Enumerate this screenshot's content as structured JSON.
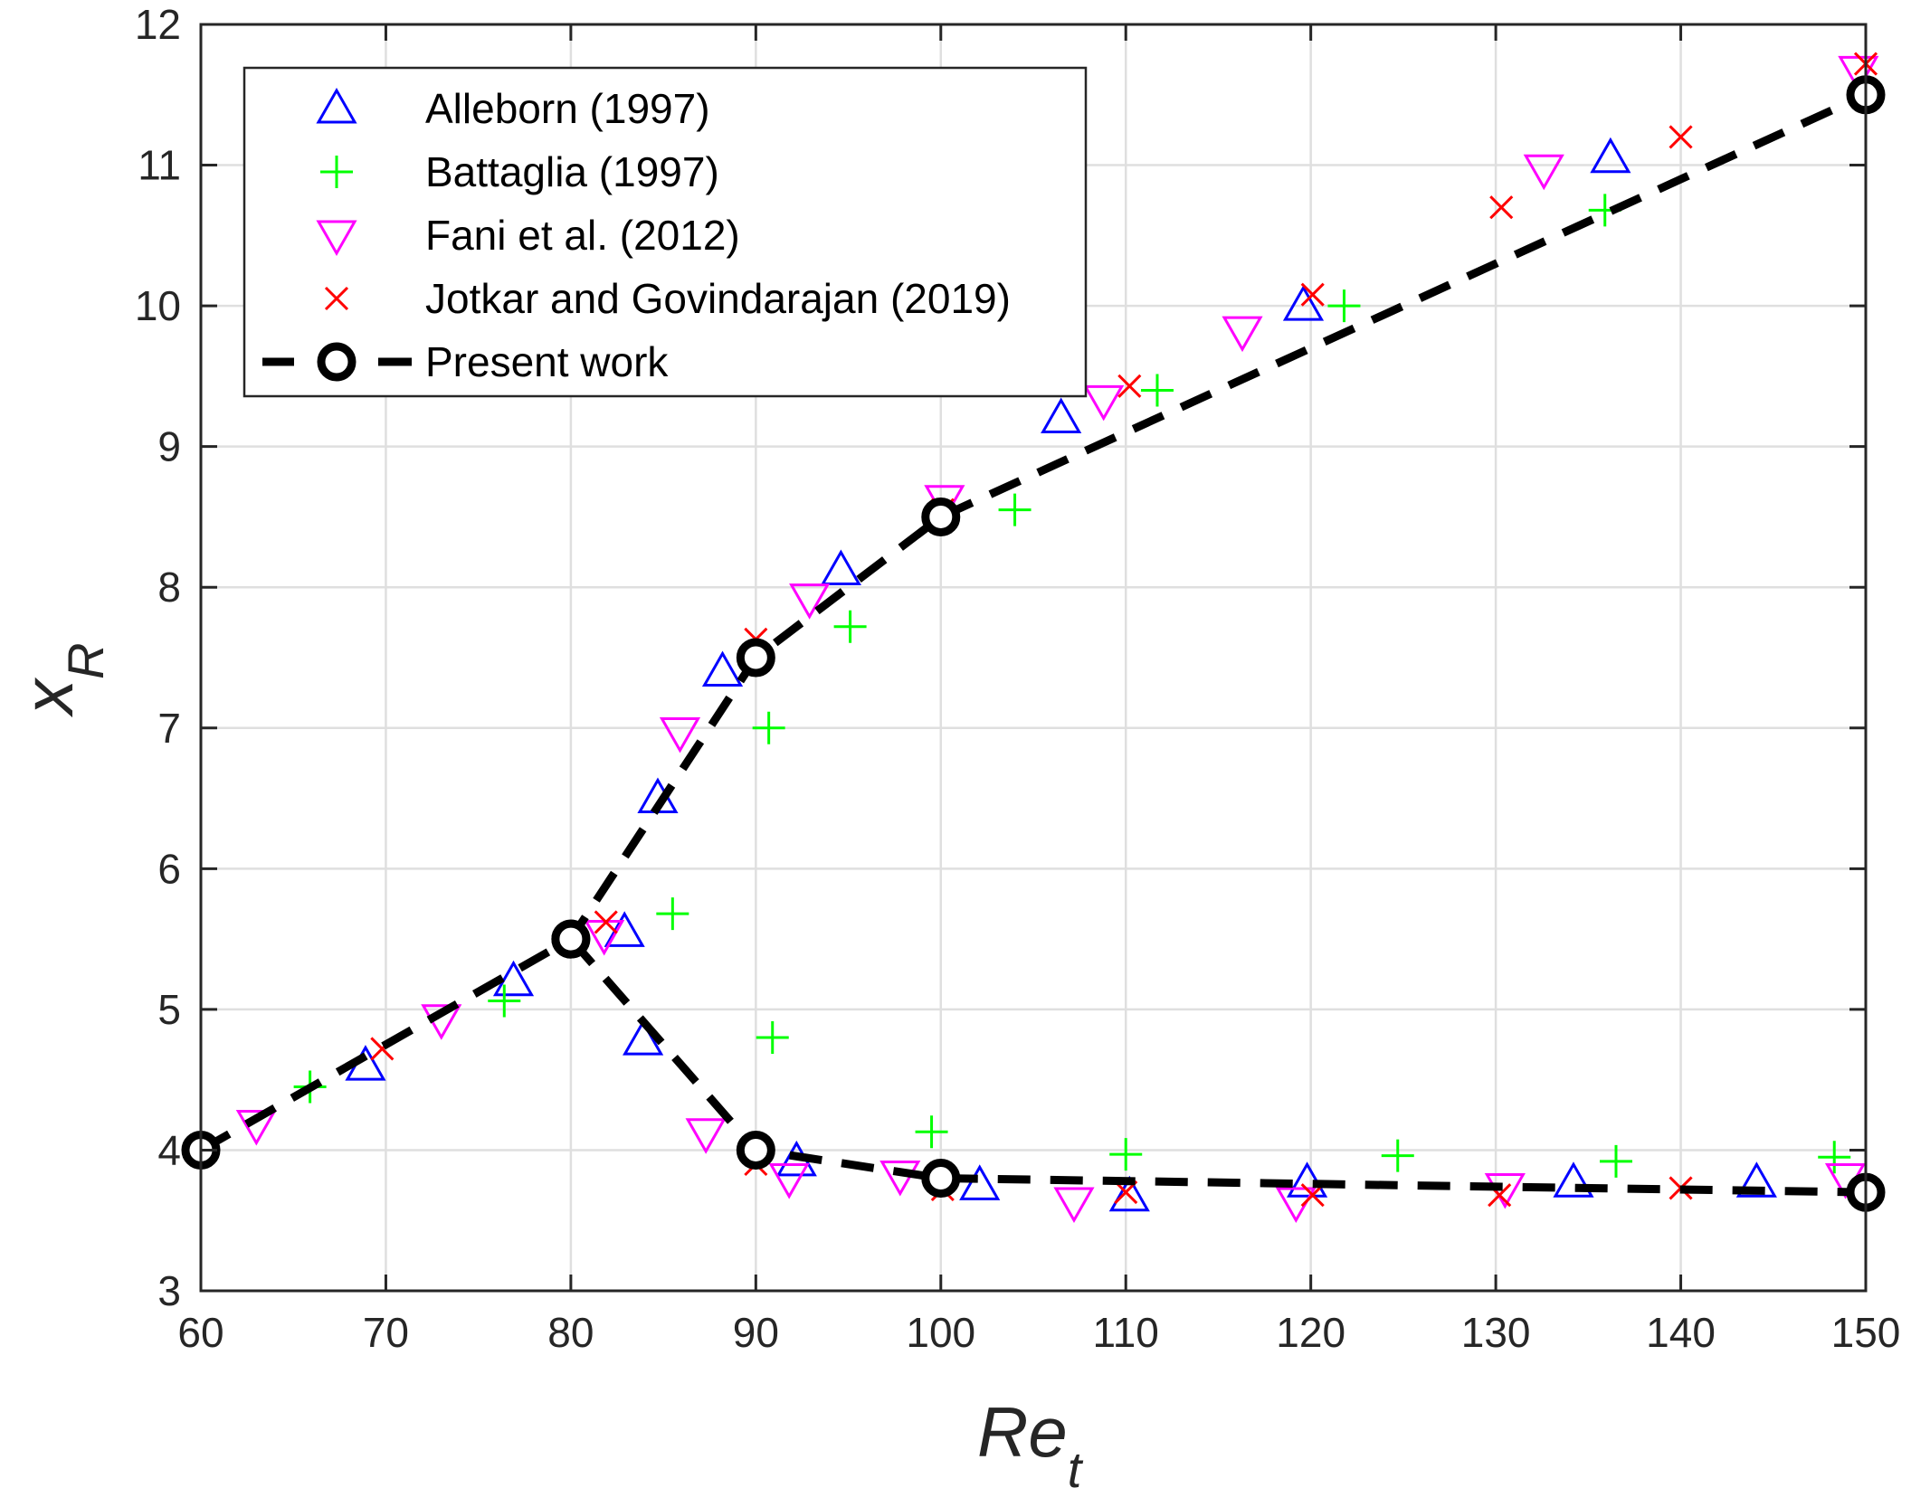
{
  "chart_data": {
    "type": "scatter",
    "title": "",
    "xlabel": {
      "main": "Re",
      "sub": "t"
    },
    "ylabel": {
      "main": "x",
      "sub": "R"
    },
    "xlim": [
      60,
      150
    ],
    "ylim": [
      3,
      12
    ],
    "xticks": [
      60,
      70,
      80,
      90,
      100,
      110,
      120,
      130,
      140,
      150
    ],
    "yticks": [
      3,
      4,
      5,
      6,
      7,
      8,
      9,
      10,
      11,
      12
    ],
    "grid": true,
    "legend_position": "top-left",
    "series": [
      {
        "name": "Alleborn (1997)",
        "marker": "triangle-up",
        "color": "#0000ff",
        "points": [
          [
            68.9,
            4.6
          ],
          [
            76.9,
            5.2
          ],
          [
            82.9,
            5.55
          ],
          [
            84.7,
            6.5
          ],
          [
            88.2,
            7.4
          ],
          [
            94.6,
            8.12
          ],
          [
            106.5,
            9.2
          ],
          [
            119.6,
            10.0
          ],
          [
            136.2,
            11.05
          ],
          [
            83.9,
            4.78
          ],
          [
            92.2,
            3.92
          ],
          [
            102.1,
            3.75
          ],
          [
            110.2,
            3.67
          ],
          [
            119.8,
            3.77
          ],
          [
            134.2,
            3.77
          ],
          [
            144.1,
            3.77
          ]
        ]
      },
      {
        "name": "Battaglia (1997)",
        "marker": "plus",
        "color": "#00ff00",
        "points": [
          [
            65.9,
            4.45
          ],
          [
            76.4,
            5.06
          ],
          [
            85.5,
            5.68
          ],
          [
            90.7,
            7.0
          ],
          [
            95.1,
            7.72
          ],
          [
            104.0,
            8.55
          ],
          [
            111.7,
            9.4
          ],
          [
            121.8,
            10.0
          ],
          [
            135.9,
            10.68
          ],
          [
            90.9,
            4.8
          ],
          [
            99.5,
            4.13
          ],
          [
            110.0,
            3.97
          ],
          [
            124.7,
            3.96
          ],
          [
            136.5,
            3.92
          ],
          [
            148.3,
            3.95
          ]
        ]
      },
      {
        "name": "Fani et al. (2012)",
        "marker": "triangle-down",
        "color": "#ff00ff",
        "points": [
          [
            63.0,
            4.18
          ],
          [
            73.0,
            4.93
          ],
          [
            81.8,
            5.53
          ],
          [
            85.9,
            6.97
          ],
          [
            92.9,
            7.92
          ],
          [
            100.2,
            8.62
          ],
          [
            108.8,
            9.33
          ],
          [
            116.3,
            9.82
          ],
          [
            132.6,
            10.97
          ],
          [
            149.6,
            11.67
          ],
          [
            87.3,
            4.12
          ],
          [
            91.8,
            3.8
          ],
          [
            97.8,
            3.82
          ],
          [
            107.2,
            3.63
          ],
          [
            119.2,
            3.63
          ],
          [
            130.5,
            3.73
          ],
          [
            148.9,
            3.8
          ]
        ]
      },
      {
        "name": "Jotkar and Govindarajan (2019)",
        "marker": "cross",
        "color": "#ff0000",
        "points": [
          [
            69.8,
            4.72
          ],
          [
            81.9,
            5.62
          ],
          [
            90.0,
            7.63
          ],
          [
            100.1,
            8.55
          ],
          [
            110.2,
            9.43
          ],
          [
            120.1,
            10.08
          ],
          [
            130.3,
            10.7
          ],
          [
            140.0,
            11.2
          ],
          [
            150.0,
            11.72
          ],
          [
            90.0,
            3.9
          ],
          [
            100.1,
            3.72
          ],
          [
            110.0,
            3.7
          ],
          [
            120.1,
            3.68
          ],
          [
            130.2,
            3.68
          ],
          [
            140.0,
            3.73
          ]
        ]
      },
      {
        "name": "Present work",
        "marker": "circle",
        "line": "dashed",
        "color": "#000000",
        "branches": [
          [
            [
              60,
              4.0
            ],
            [
              80,
              5.5
            ],
            [
              90,
              7.5
            ],
            [
              100,
              8.5
            ],
            [
              150,
              11.5
            ]
          ],
          [
            [
              80,
              5.5
            ],
            [
              90,
              4.0
            ],
            [
              100,
              3.8
            ],
            [
              150,
              3.7
            ]
          ]
        ]
      }
    ]
  }
}
